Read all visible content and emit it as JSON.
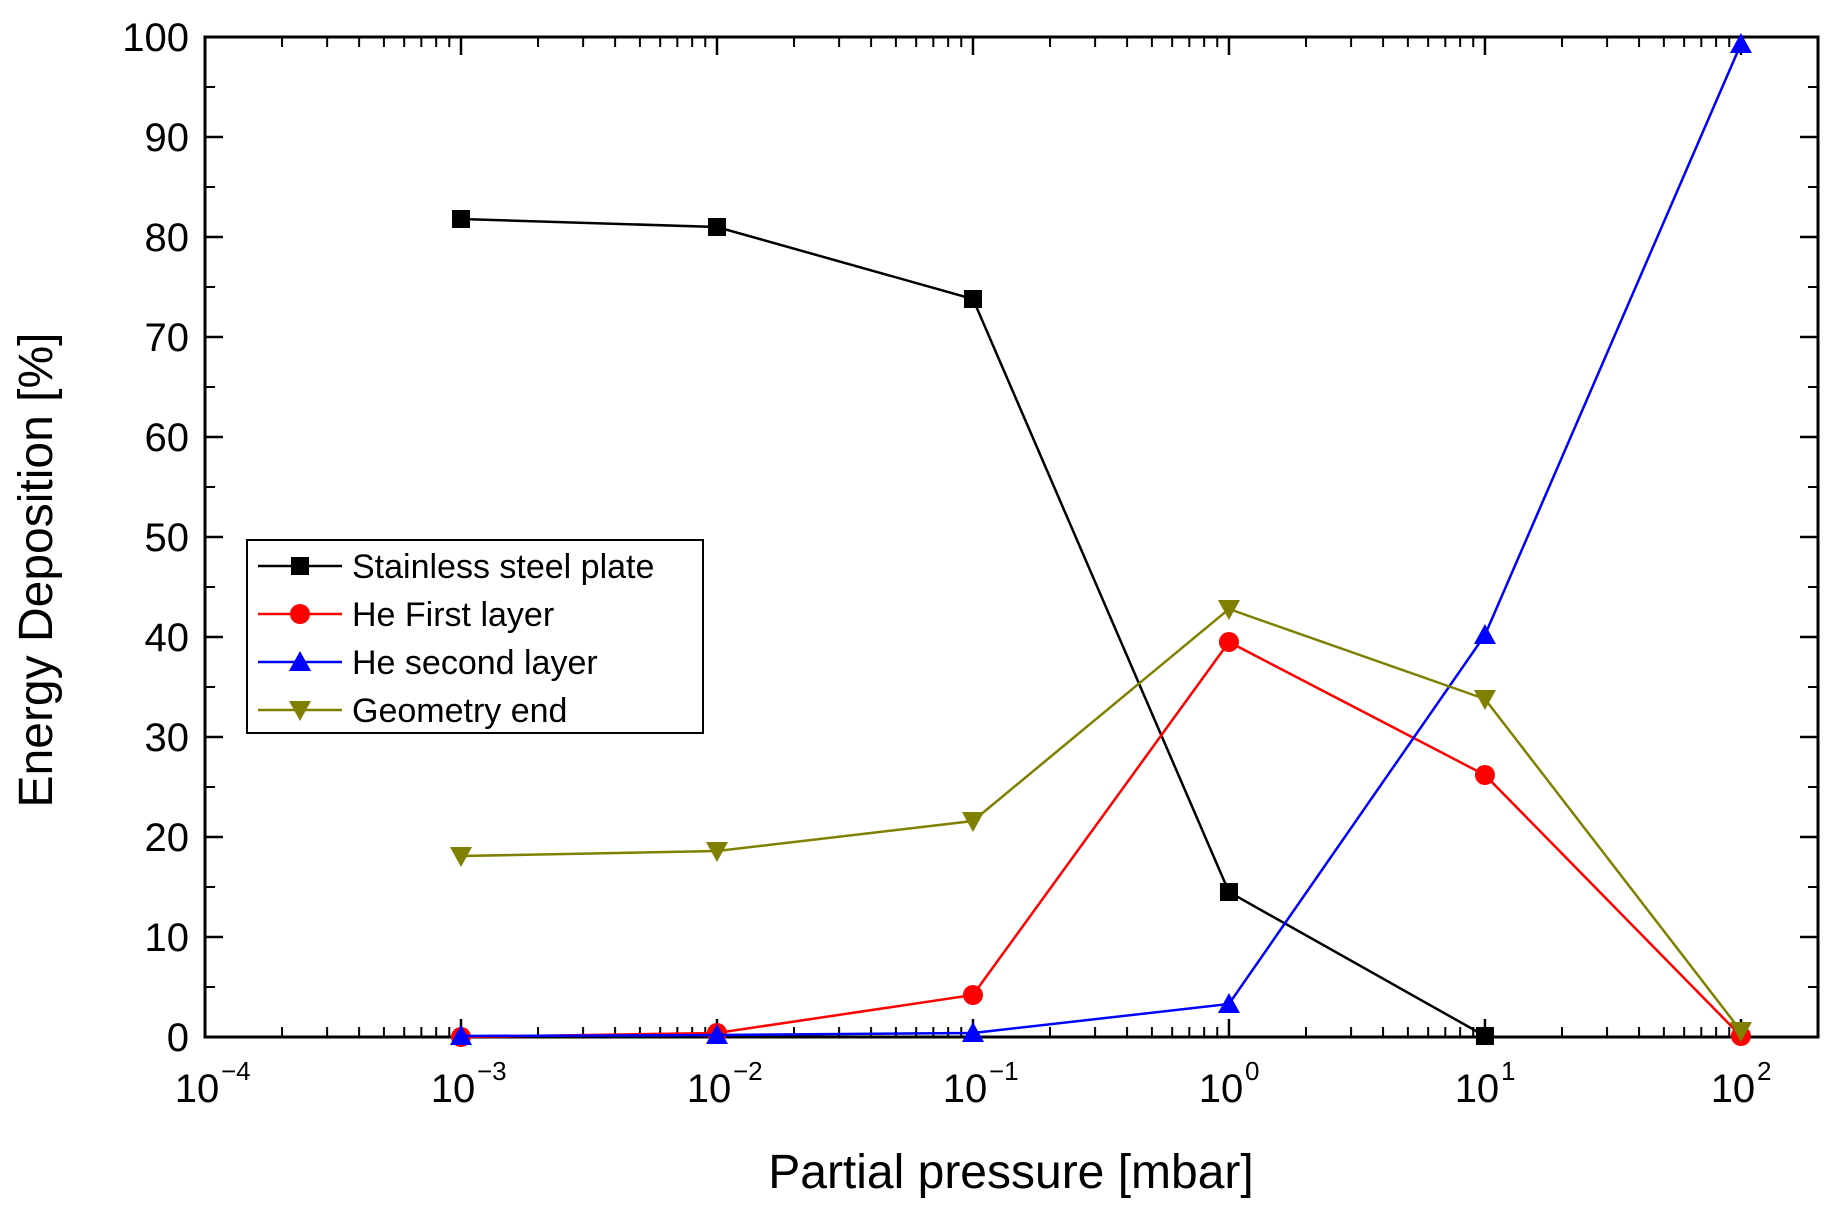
{
  "chart_data": {
    "type": "line",
    "title": "",
    "xlabel": "Partial pressure [mbar]",
    "ylabel": "Energy Deposition [%]",
    "xscale": "log",
    "xlim": [
      0.0001,
      200
    ],
    "ylim": [
      0,
      100
    ],
    "x": [
      0.001,
      0.01,
      0.1,
      1,
      10,
      100
    ],
    "xticks": [
      {
        "value": 0.0001,
        "base": "10",
        "exp": "−4"
      },
      {
        "value": 0.001,
        "base": "10",
        "exp": "−3"
      },
      {
        "value": 0.01,
        "base": "10",
        "exp": "−2"
      },
      {
        "value": 0.1,
        "base": "10",
        "exp": "−1"
      },
      {
        "value": 1,
        "base": "10",
        "exp": "0"
      },
      {
        "value": 10,
        "base": "10",
        "exp": "1"
      },
      {
        "value": 100,
        "base": "10",
        "exp": "2"
      }
    ],
    "yticks": [
      0,
      10,
      20,
      30,
      40,
      50,
      60,
      70,
      80,
      90,
      100
    ],
    "legend_position": "middle-left",
    "series": [
      {
        "name": "Stainless steel plate",
        "color": "#000000",
        "marker": "square",
        "values": [
          81.8,
          81.0,
          73.8,
          14.5,
          0.1,
          null
        ]
      },
      {
        "name": "He First layer",
        "color": "#ff0000",
        "marker": "circle",
        "values": [
          0.0,
          0.4,
          4.2,
          39.5,
          26.2,
          0.1
        ]
      },
      {
        "name": "He second layer",
        "color": "#0000ff",
        "marker": "triangle-up",
        "values": [
          0.1,
          0.2,
          0.4,
          3.3,
          40.2,
          99.3
        ]
      },
      {
        "name": "Geometry end",
        "color": "#808000",
        "marker": "triangle-down",
        "values": [
          18.1,
          18.6,
          21.6,
          42.8,
          33.8,
          0.6
        ]
      }
    ]
  }
}
